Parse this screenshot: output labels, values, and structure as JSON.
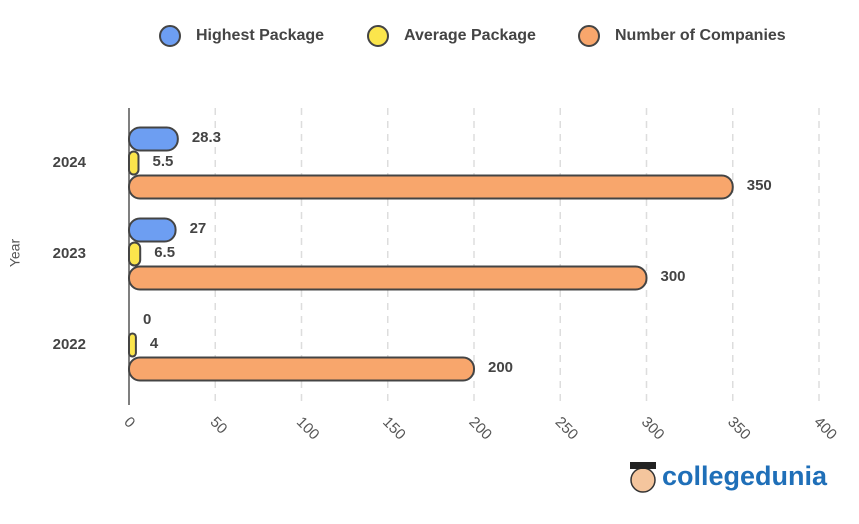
{
  "chart_data": {
    "type": "hbar",
    "ylabel": "Year",
    "categories": [
      "2024",
      "2023",
      "2022"
    ],
    "series": [
      {
        "name": "Highest Package",
        "color": "#6d9ef2",
        "values": [
          28.3,
          27,
          0
        ]
      },
      {
        "name": "Average Package",
        "color": "#fbe54c",
        "values": [
          5.5,
          6.5,
          4
        ]
      },
      {
        "name": "Number of Companies",
        "color": "#f8a66c",
        "values": [
          350,
          300,
          200
        ]
      }
    ],
    "xlim": [
      0,
      400
    ],
    "xticks": [
      0,
      50,
      100,
      150,
      200,
      250,
      300,
      350,
      400
    ],
    "grid": true,
    "legend": "top",
    "watermark": "collegedunia"
  }
}
